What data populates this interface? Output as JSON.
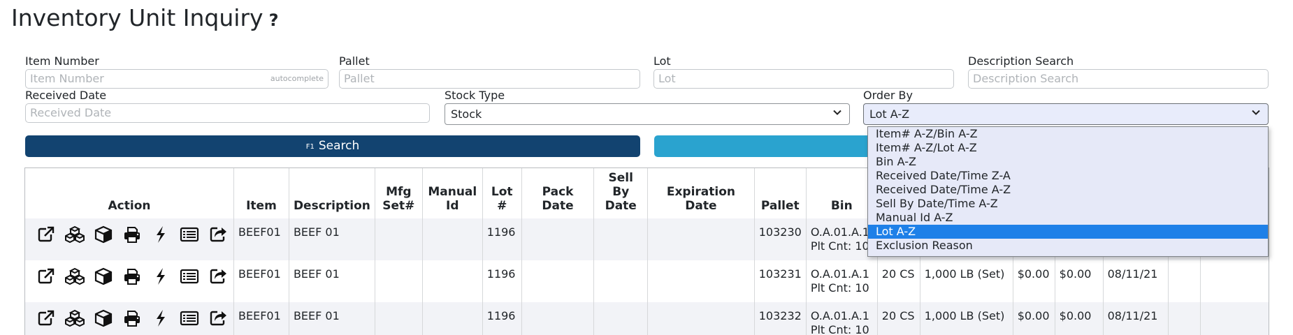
{
  "page": {
    "title": "Inventory Unit Inquiry",
    "help": "?"
  },
  "filters": {
    "item_number": {
      "label": "Item Number",
      "placeholder": "Item Number",
      "hint": "autocomplete"
    },
    "pallet": {
      "label": "Pallet",
      "placeholder": "Pallet"
    },
    "lot": {
      "label": "Lot",
      "placeholder": "Lot"
    },
    "description_search": {
      "label": "Description Search",
      "placeholder": "Description Search"
    },
    "received_date": {
      "label": "Received Date",
      "placeholder": "Received Date"
    },
    "stock_type": {
      "label": "Stock Type",
      "value": "Stock"
    },
    "order_by": {
      "label": "Order By",
      "value": "Lot A-Z",
      "options": [
        "Item# A-Z/Bin A-Z",
        "Item# A-Z/Lot A-Z",
        "Bin A-Z",
        "Received Date/Time Z-A",
        "Received Date/Time A-Z",
        "Sell By Date/Time A-Z",
        "Manual Id A-Z",
        "Lot A-Z",
        "Exclusion Reason"
      ],
      "selected_index": 7
    }
  },
  "buttons": {
    "search_key": "F1",
    "search_label": "Search"
  },
  "table": {
    "headers": {
      "action": "Action",
      "item": "Item",
      "description": "Description",
      "mfg_set": "Mfg Set#",
      "manual_id": "Manual Id",
      "lot": "Lot #",
      "pack_date": "Pack Date",
      "sell_by": "Sell By Date",
      "expiration": "Expiration Date",
      "pallet": "Pallet",
      "bin": "Bin"
    },
    "action_icons": [
      "external-link-icon",
      "cubes-icon",
      "cube-icon",
      "print-icon",
      "bolt-icon",
      "list-icon",
      "share-icon"
    ],
    "rows": [
      {
        "item": "BEEF01",
        "description": "BEEF 01",
        "mfg_set": "",
        "manual_id": "",
        "lot": "1196",
        "pack_date": "",
        "sell_by": "",
        "expiration": "",
        "pallet": "103230",
        "bin": "O.A.01.A.1",
        "plt_cnt": "Plt Cnt: 10",
        "qty": "",
        "weight": "",
        "price1": "",
        "price2": "",
        "date": ""
      },
      {
        "item": "BEEF01",
        "description": "BEEF 01",
        "mfg_set": "",
        "manual_id": "",
        "lot": "1196",
        "pack_date": "",
        "sell_by": "",
        "expiration": "",
        "pallet": "103231",
        "bin": "O.A.01.A.1",
        "plt_cnt": "Plt Cnt: 10",
        "qty": "20 CS",
        "weight": "1,000 LB (Set)",
        "price1": "$0.00",
        "price2": "$0.00",
        "date": "08/11/21"
      },
      {
        "item": "BEEF01",
        "description": "BEEF 01",
        "mfg_set": "",
        "manual_id": "",
        "lot": "1196",
        "pack_date": "",
        "sell_by": "",
        "expiration": "",
        "pallet": "103232",
        "bin": "O.A.01.A.1",
        "plt_cnt": "Plt Cnt: 10",
        "qty": "20 CS",
        "weight": "1,000 LB (Set)",
        "price1": "$0.00",
        "price2": "$0.00",
        "date": "08/11/21"
      }
    ]
  }
}
